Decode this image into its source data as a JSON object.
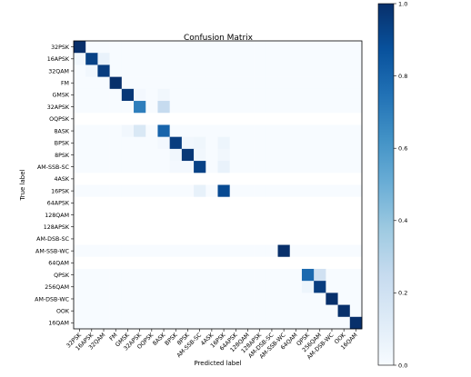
{
  "chart_data": {
    "type": "heatmap",
    "title": "Confusion Matrix",
    "xlabel": "Predicted label",
    "ylabel": "True label",
    "labels": [
      "32PSK",
      "16APSK",
      "32QAM",
      "FM",
      "GMSK",
      "32APSK",
      "OQPSK",
      "8ASK",
      "BPSK",
      "8PSK",
      "AM-SSB-SC",
      "4ASK",
      "16PSK",
      "64APSK",
      "128QAM",
      "128APSK",
      "AM-DSB-SC",
      "AM-SSB-WC",
      "64QAM",
      "QPSK",
      "256QAM",
      "AM-DSB-WC",
      "OOK",
      "16QAM"
    ],
    "matrix": [
      [
        1.0,
        0,
        0,
        0,
        0,
        0,
        0,
        0,
        0,
        0,
        0,
        0,
        0,
        0,
        0,
        0,
        0,
        0,
        0,
        0,
        0,
        0,
        0,
        0
      ],
      [
        0.03,
        0.93,
        0.07,
        0,
        0,
        0,
        0,
        0,
        0,
        0,
        0,
        0,
        0,
        0,
        0,
        0,
        0,
        0,
        0,
        0,
        0,
        0,
        0,
        0
      ],
      [
        0,
        0.03,
        0.95,
        0,
        0,
        0,
        0,
        0,
        0,
        0,
        0,
        0,
        0,
        0,
        0,
        0,
        0,
        0,
        0,
        0,
        0,
        0,
        0,
        0
      ],
      [
        0,
        0,
        0,
        1.0,
        0,
        0,
        0,
        0,
        0,
        0,
        0,
        0,
        0,
        0,
        0,
        0,
        0,
        0,
        0,
        0,
        0,
        0,
        0,
        0
      ],
      [
        0,
        0,
        0,
        0,
        0.97,
        0.02,
        0,
        0.03,
        0,
        0,
        0,
        0,
        0,
        0,
        0,
        0,
        0,
        0,
        0,
        0,
        0,
        0,
        0,
        0
      ],
      [
        0,
        0,
        0,
        0,
        0,
        0.7,
        0,
        0.25,
        0,
        0,
        0,
        0,
        0,
        0,
        0,
        0,
        0,
        0,
        0,
        0,
        0,
        0,
        0,
        0
      ],
      [
        0,
        0,
        0,
        0,
        0,
        0,
        0,
        0,
        0,
        0,
        0,
        0,
        0,
        0,
        0,
        0,
        0,
        0,
        0,
        0,
        0,
        0,
        0,
        0
      ],
      [
        0,
        0,
        0,
        0,
        0.03,
        0.15,
        0,
        0.8,
        0,
        0,
        0,
        0,
        0,
        0,
        0,
        0,
        0,
        0,
        0,
        0,
        0,
        0,
        0,
        0
      ],
      [
        0,
        0,
        0,
        0,
        0,
        0,
        0,
        0.02,
        0.95,
        0.03,
        0.04,
        0,
        0.05,
        0,
        0,
        0,
        0,
        0,
        0,
        0,
        0,
        0,
        0,
        0
      ],
      [
        0,
        0,
        0,
        0,
        0,
        0,
        0,
        0,
        0.03,
        0.97,
        0.03,
        0,
        0.03,
        0,
        0,
        0,
        0,
        0,
        0,
        0,
        0,
        0,
        0,
        0
      ],
      [
        0,
        0,
        0,
        0,
        0,
        0,
        0,
        0,
        0.02,
        0.02,
        0.93,
        0,
        0.07,
        0,
        0,
        0,
        0,
        0,
        0,
        0,
        0,
        0,
        0,
        0
      ],
      [
        0,
        0,
        0,
        0,
        0,
        0,
        0,
        0,
        0,
        0,
        0,
        0,
        0,
        0,
        0,
        0,
        0,
        0,
        0,
        0,
        0,
        0,
        0,
        0
      ],
      [
        0,
        0,
        0,
        0,
        0,
        0,
        0,
        0,
        0,
        0,
        0.08,
        0,
        0.9,
        0,
        0,
        0,
        0,
        0,
        0,
        0,
        0,
        0,
        0,
        0
      ],
      [
        0,
        0,
        0,
        0,
        0,
        0,
        0,
        0,
        0,
        0,
        0,
        0,
        0,
        0,
        0,
        0,
        0,
        0,
        0,
        0,
        0,
        0,
        0,
        0
      ],
      [
        0,
        0,
        0,
        0,
        0,
        0,
        0,
        0,
        0,
        0,
        0,
        0,
        0,
        0,
        0,
        0,
        0,
        0,
        0,
        0,
        0,
        0,
        0,
        0
      ],
      [
        0,
        0,
        0,
        0,
        0,
        0,
        0,
        0,
        0,
        0,
        0,
        0,
        0,
        0,
        0,
        0,
        0,
        0,
        0,
        0,
        0,
        0,
        0,
        0
      ],
      [
        0,
        0,
        0,
        0,
        0,
        0,
        0,
        0,
        0,
        0,
        0,
        0,
        0,
        0,
        0,
        0,
        0,
        0,
        0,
        0,
        0,
        0,
        0,
        0
      ],
      [
        0,
        0,
        0,
        0,
        0,
        0,
        0,
        0,
        0,
        0,
        0,
        0,
        0,
        0,
        0,
        0,
        0,
        1.0,
        0,
        0,
        0,
        0,
        0,
        0
      ],
      [
        0,
        0,
        0,
        0,
        0,
        0,
        0,
        0,
        0,
        0,
        0,
        0,
        0,
        0,
        0,
        0,
        0,
        0,
        0,
        0,
        0,
        0,
        0,
        0
      ],
      [
        0,
        0,
        0,
        0,
        0,
        0,
        0,
        0,
        0,
        0,
        0,
        0,
        0,
        0,
        0,
        0,
        0,
        0,
        0,
        0.78,
        0.2,
        0,
        0,
        0
      ],
      [
        0,
        0,
        0,
        0,
        0,
        0,
        0,
        0,
        0,
        0,
        0,
        0,
        0,
        0,
        0,
        0,
        0,
        0,
        0,
        0.05,
        0.95,
        0,
        0,
        0
      ],
      [
        0,
        0,
        0,
        0,
        0,
        0,
        0,
        0,
        0,
        0,
        0,
        0,
        0,
        0,
        0,
        0,
        0,
        0,
        0,
        0,
        0,
        1.0,
        0,
        0
      ],
      [
        0,
        0,
        0,
        0,
        0,
        0,
        0,
        0,
        0,
        0,
        0,
        0,
        0,
        0,
        0,
        0,
        0,
        0,
        0,
        0,
        0,
        0,
        1.0,
        0
      ],
      [
        0,
        0,
        0,
        0,
        0,
        0,
        0,
        0,
        0,
        0,
        0,
        0,
        0,
        0,
        0,
        0,
        0,
        0,
        0,
        0,
        0,
        0,
        0,
        1.0
      ]
    ],
    "colorbar": {
      "ticks": [
        0.0,
        0.2,
        0.4,
        0.6,
        0.8,
        1.0
      ],
      "tick_labels": [
        "0.0",
        "0.2",
        "0.4",
        "0.6",
        "0.8",
        "1.0"
      ],
      "range": [
        0,
        1
      ],
      "colormap": "Blues"
    },
    "colors": {
      "low": "#f7fbff",
      "high": "#08306b",
      "empty_row": "#ffffff"
    },
    "grid": false
  }
}
